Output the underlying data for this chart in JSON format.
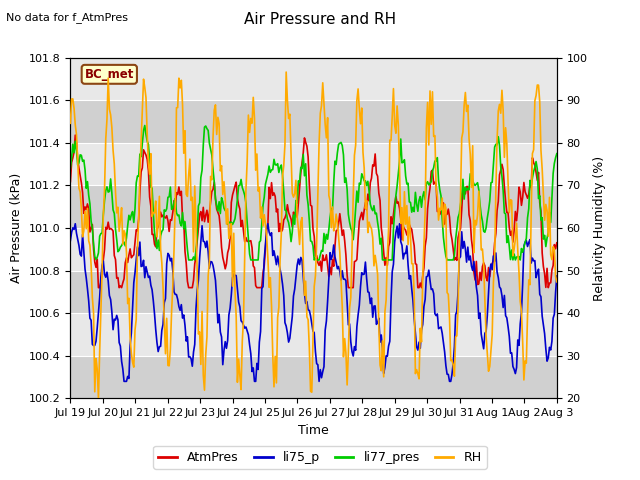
{
  "title": "Air Pressure and RH",
  "subtitle": "No data for f_AtmPres",
  "xlabel": "Time",
  "ylabel_left": "Air Pressure (kPa)",
  "ylabel_right": "Relativity Humidity (%)",
  "annotation": "BC_met",
  "ylim_left": [
    100.2,
    101.8
  ],
  "ylim_right": [
    20,
    100
  ],
  "xtick_labels": [
    "Jul 19",
    "Jul 20",
    "Jul 21",
    "Jul 22",
    "Jul 23",
    "Jul 24",
    "Jul 25",
    "Jul 26",
    "Jul 27",
    "Jul 28",
    "Jul 29",
    "Jul 30",
    "Jul 31",
    "Aug 1",
    "Aug 2",
    "Aug 3"
  ],
  "colors": {
    "AtmPres": "#dd0000",
    "li75_p": "#0000cc",
    "li77_pres": "#00cc00",
    "RH": "#ffaa00"
  },
  "legend_entries": [
    "AtmPres",
    "li75_p",
    "li77_pres",
    "RH"
  ],
  "fig_bg": "#ffffff",
  "plot_bg_light": "#e8e8e8",
  "plot_bg_dark": "#d0d0d0",
  "title_fontsize": 11,
  "axis_fontsize": 9,
  "tick_fontsize": 8
}
